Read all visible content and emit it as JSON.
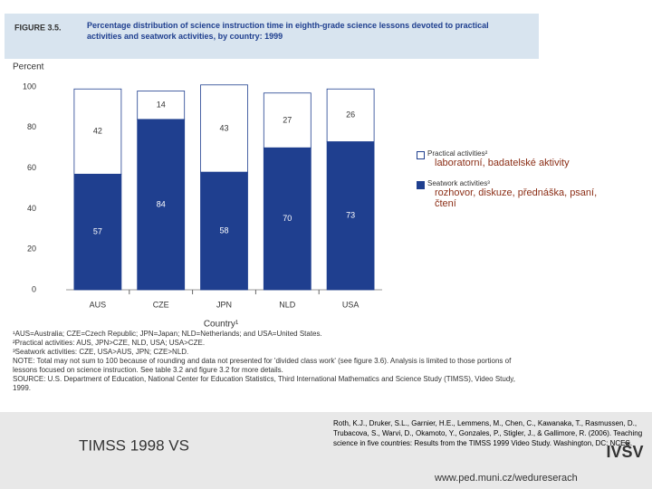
{
  "chart_data": {
    "type": "stacked-bar",
    "figure_label": "FIGURE 3.5.",
    "title": "Percentage distribution of science instruction time in eighth-grade science lessons devoted to practical activities and seatwork activities, by country: 1999",
    "y_label": "Percent",
    "x_label": "Country¹",
    "categories": [
      "AUS",
      "CZE",
      "JPN",
      "NLD",
      "USA"
    ],
    "series": [
      {
        "name": "Seatwork activities³",
        "color": "#1f3f8f",
        "label_color": "#ffffff",
        "note": "rozhovor, diskuze, přednáška, psaní, čtení",
        "values": [
          57,
          84,
          58,
          70,
          73
        ]
      },
      {
        "name": "Practical activities²",
        "color": "#ffffff",
        "label_color": "#333333",
        "note": "laboratorní, badatelské aktivity",
        "values": [
          42,
          14,
          43,
          27,
          26
        ]
      }
    ],
    "ylim": [
      0,
      100
    ],
    "yticks": [
      0,
      20,
      40,
      60,
      80,
      100
    ]
  },
  "notes": [
    "¹AUS=Australia; CZE=Czech Republic; JPN=Japan; NLD=Netherlands; and USA=United States.",
    "²Practical activities: AUS, JPN>CZE, NLD, USA; USA>CZE.",
    "³Seatwork activities: CZE, USA>AUS, JPN; CZE>NLD.",
    "NOTE: Total may not sum to 100 because of rounding and data not presented for 'divided class work' (see figure 3.6). Analysis is limited to those portions of lessons focused on science instruction. See table 3.2 and figure 3.2 for more details.",
    "SOURCE: U.S. Department of Education, National Center for Education Statistics, Third International Mathematics and Science Study (TIMSS), Video Study, 1999."
  ],
  "slide": {
    "caption": "TIMSS 1998 VS",
    "citation": "Roth, K.J., Druker, S.L., Garnier, H.E., Lemmens, M., Chen, C., Kawanaka, T., Rasmussen, D., Trubacova, S., Warvi, D., Okamoto, Y., Gonzales, P., Stigler, J., & Gallimore, R. (2006). Teaching science in five countries: Results from the TIMSS 1999 Video Study. Washington, DC: NCES.",
    "url": "www.ped.muni.cz/wedureserach",
    "logo": "IVŠV"
  }
}
